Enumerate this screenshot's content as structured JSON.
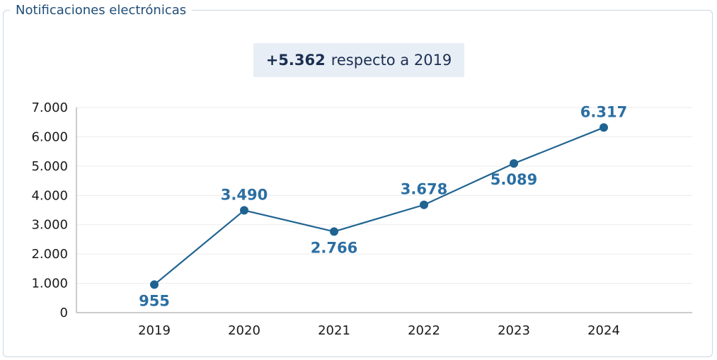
{
  "panel": {
    "title": "Notificaciones electrónicas"
  },
  "summary": {
    "delta": "+5.362",
    "text": "respecto a 2019"
  },
  "colors": {
    "line": "#1f6391",
    "marker": "#1f6391",
    "label": "#2b6fa3",
    "title": "#1f4e79",
    "badge_bg": "#e8eef5",
    "border": "#c9d7e6"
  },
  "chart_data": {
    "type": "line",
    "title": "",
    "xlabel": "",
    "ylabel": "",
    "categories": [
      "2019",
      "2020",
      "2021",
      "2022",
      "2023",
      "2024"
    ],
    "series": [
      {
        "values": [
          955,
          3490,
          2766,
          3678,
          5089,
          6317
        ]
      }
    ],
    "value_labels": [
      "955",
      "3.490",
      "2.766",
      "3.678",
      "5.089",
      "6.317"
    ],
    "label_positions": [
      "below",
      "above",
      "below",
      "above",
      "below",
      "above"
    ],
    "ylim": [
      0,
      7000
    ],
    "yticks": [
      0,
      1000,
      2000,
      3000,
      4000,
      5000,
      6000,
      7000
    ],
    "ytick_labels": [
      "0",
      "1.000",
      "2.000",
      "3.000",
      "4.000",
      "5.000",
      "6.000",
      "7.000"
    ],
    "grid": true,
    "legend": "none"
  }
}
